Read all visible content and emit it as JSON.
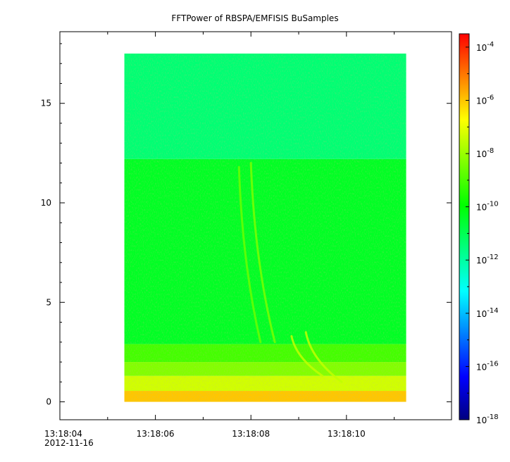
{
  "chart_data": {
    "type": "heatmap",
    "title": "FFTPower of RBSPA/EMFISIS  BuSamples",
    "x_ticks": [
      {
        "label": "13:18:04",
        "sublabel": "2012-11-16",
        "t": 0
      },
      {
        "label": "13:18:06",
        "t": 2
      },
      {
        "label": "13:18:08",
        "t": 4
      },
      {
        "label": "13:18:10",
        "t": 6
      }
    ],
    "x_range_seconds": [
      0,
      8.2
    ],
    "data_time_range_seconds": [
      1.35,
      7.25
    ],
    "y_ticks": [
      0,
      5,
      10,
      15
    ],
    "y_range": [
      -0.9,
      18.6
    ],
    "y_data_max": 17.5,
    "colorbar": {
      "scale": "log",
      "range_exponent": [
        -18,
        -3.5
      ],
      "tick_base": "10",
      "tick_exponents": [
        "-4",
        "-6",
        "-8",
        "-10",
        "-12",
        "-14",
        "-16",
        "-18"
      ],
      "colors": [
        "#00007f",
        "#0000ff",
        "#007fff",
        "#00ffff",
        "#00ff7f",
        "#00ff00",
        "#7fff00",
        "#ffff00",
        "#ff7f00",
        "#ff0000"
      ]
    },
    "bands": [
      {
        "y_from": 12.2,
        "y_to": 17.5,
        "log_power": -11.4
      },
      {
        "y_from": 2.9,
        "y_to": 12.2,
        "log_power": -10.4
      },
      {
        "y_from": 2.0,
        "y_to": 2.9,
        "log_power": -9.1
      },
      {
        "y_from": 1.3,
        "y_to": 2.0,
        "log_power": -8.3
      },
      {
        "y_from": 0.55,
        "y_to": 1.3,
        "log_power": -7.3
      },
      {
        "y_from": 0.0,
        "y_to": 0.55,
        "log_power": -6.0
      }
    ],
    "features": [
      {
        "t_start": 3.75,
        "f_start": 11.8,
        "t_end": 4.2,
        "f_end": 3.0,
        "log_power": -8.6
      },
      {
        "t_start": 4.0,
        "f_start": 12.0,
        "t_end": 4.5,
        "f_end": 3.0,
        "log_power": -8.4
      },
      {
        "t_start": 4.85,
        "f_start": 3.3,
        "t_end": 5.5,
        "f_end": 1.3,
        "log_power": -7.5
      },
      {
        "t_start": 5.15,
        "f_start": 3.5,
        "t_end": 5.9,
        "f_end": 1.0,
        "log_power": -7.5
      }
    ]
  }
}
